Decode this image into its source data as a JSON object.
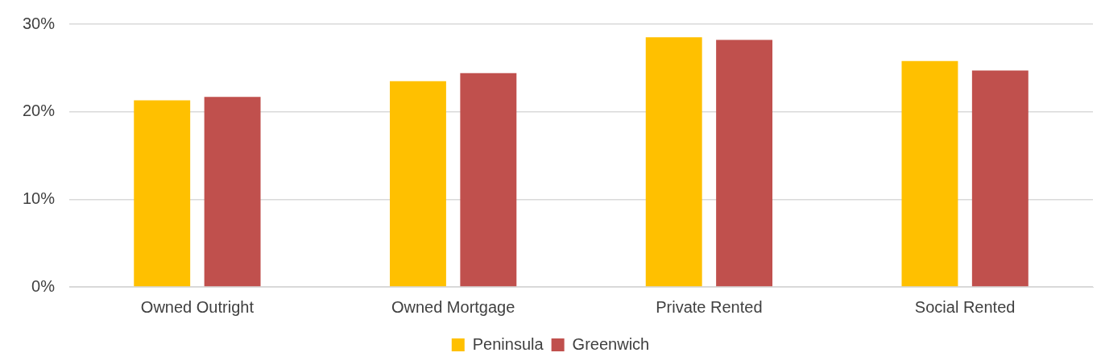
{
  "chart_data": {
    "type": "bar",
    "categories": [
      "Owned Outright",
      "Owned Mortgage",
      "Private Rented",
      "Social Rented"
    ],
    "series": [
      {
        "name": "Peninsula",
        "color": "#ffc000",
        "values": [
          21.3,
          23.5,
          28.5,
          25.8
        ]
      },
      {
        "name": "Greenwich",
        "color": "#c0504d",
        "values": [
          21.7,
          24.4,
          28.2,
          24.7
        ]
      }
    ],
    "ylim": [
      0,
      30
    ],
    "yticks": [
      {
        "value": 0,
        "label": "0%"
      },
      {
        "value": 10,
        "label": "10%"
      },
      {
        "value": 20,
        "label": "20%"
      },
      {
        "value": 30,
        "label": "30%"
      }
    ],
    "grid": "y",
    "legend": "bottom"
  }
}
